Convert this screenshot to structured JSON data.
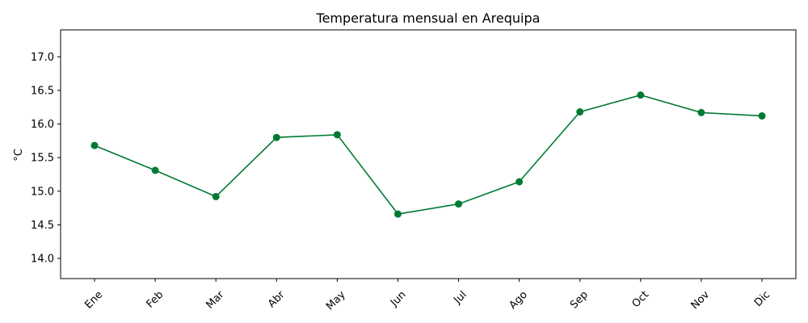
{
  "chart_data": {
    "type": "line",
    "title": "Temperatura mensual en Arequipa",
    "xlabel": "",
    "ylabel": "°C",
    "categories": [
      "Ene",
      "Feb",
      "Mar",
      "Abr",
      "May",
      "Jun",
      "Jul",
      "Ago",
      "Sep",
      "Oct",
      "Nov",
      "Dic"
    ],
    "series": [
      {
        "values": [
          15.68,
          15.31,
          14.92,
          15.8,
          15.84,
          14.66,
          14.81,
          15.14,
          16.18,
          16.43,
          16.17,
          16.12
        ],
        "color": "#007a33",
        "marker": "circle"
      }
    ],
    "ylim": [
      13.7,
      17.4
    ],
    "yticks": [
      14.0,
      14.5,
      15.0,
      15.5,
      16.0,
      16.5,
      17.0
    ],
    "ytick_labels": [
      "14.0",
      "14.5",
      "15.0",
      "15.5",
      "16.0",
      "16.5",
      "17.0"
    ],
    "grid": false,
    "legend": "none"
  }
}
